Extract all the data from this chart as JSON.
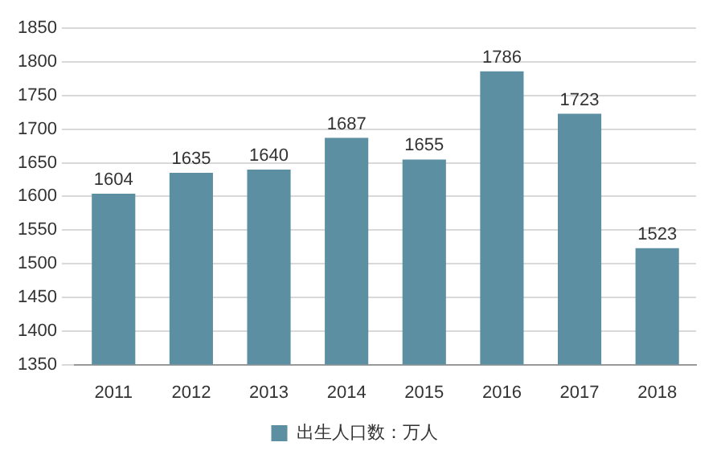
{
  "chart_data": {
    "type": "bar",
    "categories": [
      "2011",
      "2012",
      "2013",
      "2014",
      "2015",
      "2016",
      "2017",
      "2018"
    ],
    "series": [
      {
        "name": "出生人口数：万人",
        "color": "#5b8fa1",
        "values": [
          1604,
          1635,
          1640,
          1687,
          1655,
          1786,
          1723,
          1523
        ]
      }
    ],
    "ylim": [
      1350,
      1850
    ],
    "yticks": [
      1350,
      1400,
      1450,
      1500,
      1550,
      1600,
      1650,
      1700,
      1750,
      1800,
      1850
    ],
    "grid": "y",
    "legend": "bottom",
    "data_labels": true
  }
}
